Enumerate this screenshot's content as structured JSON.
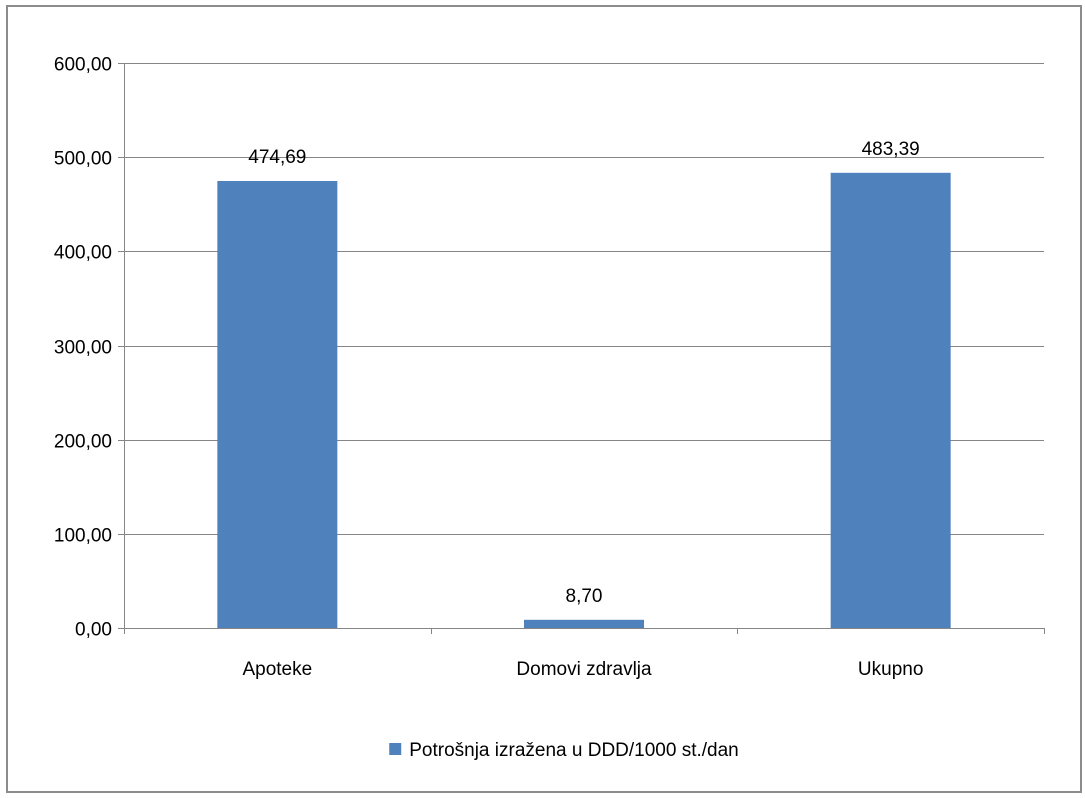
{
  "chart_data": {
    "type": "bar",
    "categories": [
      "Apoteke",
      "Domovi zdravlja",
      "Ukupno"
    ],
    "series": [
      {
        "name": "Potrošnja izražena u DDD/1000 st./dan",
        "values": [
          474.69,
          8.7,
          483.39
        ],
        "value_labels": [
          "474,69",
          "8,70",
          "483,39"
        ],
        "color": "#4f81bd"
      }
    ],
    "ylim": [
      0,
      600
    ],
    "yticks": [
      0,
      100,
      200,
      300,
      400,
      500,
      600
    ],
    "ytick_labels": [
      "0,00",
      "100,00",
      "200,00",
      "300,00",
      "400,00",
      "500,00",
      "600,00"
    ],
    "grid": true,
    "legend_position": "bottom",
    "title": "",
    "xlabel": "",
    "ylabel": ""
  },
  "colors": {
    "bar": "#4f81bd",
    "gridline": "#868686",
    "axis": "#868686",
    "frame": "#8c8c8c"
  }
}
